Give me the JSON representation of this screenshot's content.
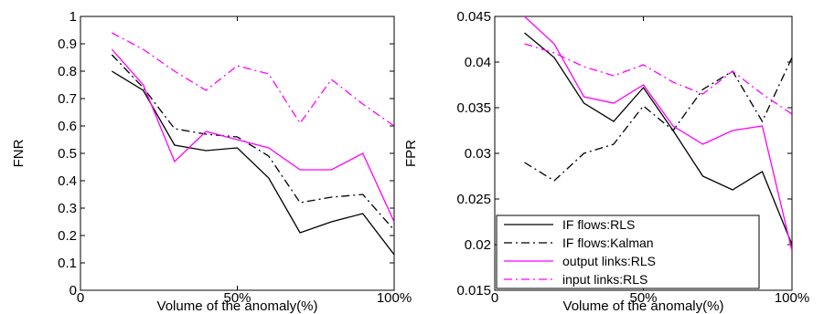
{
  "chart_data": [
    {
      "type": "line",
      "xlabel": "Volume of the anomaly(%)",
      "ylabel": "FNR",
      "xlim": [
        0,
        100
      ],
      "ylim": [
        0,
        1
      ],
      "xticks": [
        0,
        50,
        100
      ],
      "xtick_labels": [
        "0",
        "50%",
        "100%"
      ],
      "yticks": [
        0,
        0.1,
        0.2,
        0.3,
        0.4,
        0.5,
        0.6,
        0.7,
        0.8,
        0.9,
        1
      ],
      "ytick_labels": [
        "0",
        "0.1",
        "0.2",
        "0.3",
        "0.4",
        "0.5",
        "0.6",
        "0.7",
        "0.8",
        "0.9",
        "1"
      ],
      "grid": false,
      "x": [
        10,
        20,
        30,
        40,
        50,
        60,
        70,
        80,
        90,
        100
      ],
      "series": [
        {
          "name": "IF flows:RLS",
          "color": "#000000",
          "dash": "solid",
          "values": [
            0.8,
            0.73,
            0.53,
            0.51,
            0.52,
            0.41,
            0.21,
            0.25,
            0.28,
            0.13
          ]
        },
        {
          "name": "IF flows:Kalman",
          "color": "#000000",
          "dash": "dashdot",
          "values": [
            0.86,
            0.74,
            0.59,
            0.57,
            0.56,
            0.49,
            0.32,
            0.34,
            0.35,
            0.22
          ]
        },
        {
          "name": "output links:RLS",
          "color": "#ff00ff",
          "dash": "solid",
          "values": [
            0.88,
            0.75,
            0.47,
            0.58,
            0.55,
            0.52,
            0.44,
            0.44,
            0.5,
            0.25
          ]
        },
        {
          "name": "input links:RLS",
          "color": "#ff00ff",
          "dash": "dashdot",
          "values": [
            0.94,
            0.88,
            0.8,
            0.73,
            0.82,
            0.79,
            0.61,
            0.77,
            0.68,
            0.6
          ]
        }
      ]
    },
    {
      "type": "line",
      "xlabel": "Volume of the anomaly(%)",
      "ylabel": "FPR",
      "xlim": [
        0,
        100
      ],
      "ylim": [
        0.015,
        0.045
      ],
      "xticks": [
        0,
        50,
        100
      ],
      "xtick_labels": [
        "0",
        "50%",
        "100%"
      ],
      "yticks": [
        0.015,
        0.02,
        0.025,
        0.03,
        0.035,
        0.04,
        0.045
      ],
      "ytick_labels": [
        "0.015",
        "0.02",
        "0.025",
        "0.03",
        "0.035",
        "0.04",
        "0.045"
      ],
      "grid": false,
      "legend_position": "bottom-left",
      "x": [
        10,
        20,
        30,
        40,
        50,
        60,
        70,
        80,
        90,
        100
      ],
      "series": [
        {
          "name": "IF flows:RLS",
          "color": "#000000",
          "dash": "solid",
          "values": [
            0.0432,
            0.0405,
            0.0355,
            0.0335,
            0.0372,
            0.0325,
            0.0275,
            0.026,
            0.028,
            0.02
          ]
        },
        {
          "name": "IF flows:Kalman",
          "color": "#000000",
          "dash": "dashdot",
          "values": [
            0.029,
            0.027,
            0.03,
            0.031,
            0.0352,
            0.0325,
            0.037,
            0.039,
            0.0335,
            0.0405
          ]
        },
        {
          "name": "output links:RLS",
          "color": "#ff00ff",
          "dash": "solid",
          "values": [
            0.045,
            0.042,
            0.0362,
            0.0355,
            0.0375,
            0.033,
            0.031,
            0.0325,
            0.033,
            0.0193
          ]
        },
        {
          "name": "input links:RLS",
          "color": "#ff00ff",
          "dash": "dashdot",
          "values": [
            0.042,
            0.041,
            0.0395,
            0.0385,
            0.0397,
            0.0378,
            0.0365,
            0.039,
            0.0365,
            0.0343
          ]
        }
      ]
    }
  ]
}
